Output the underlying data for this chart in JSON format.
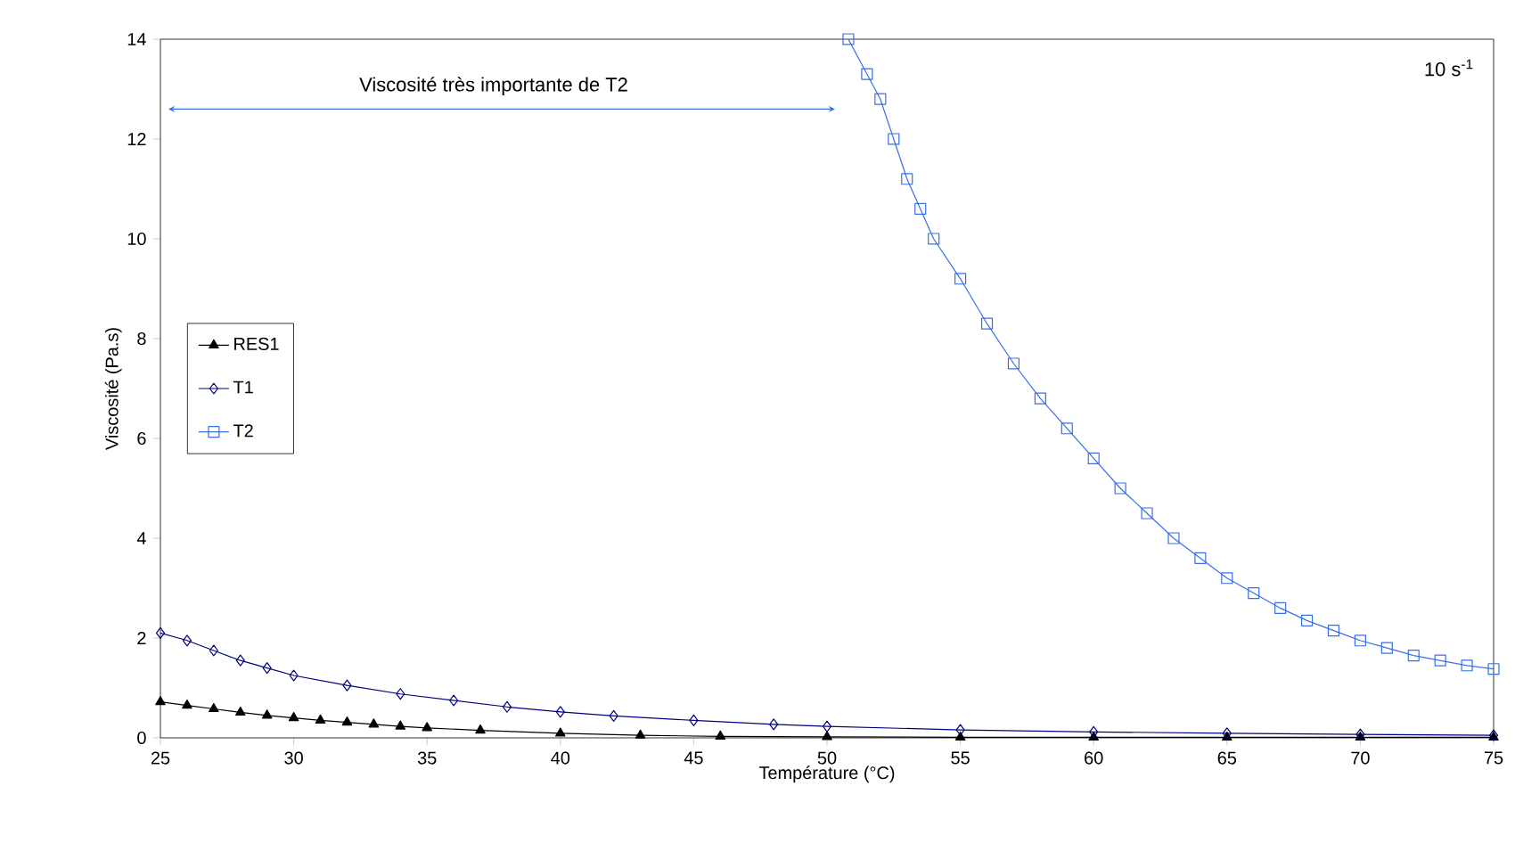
{
  "chart_data": {
    "type": "line",
    "xlabel": "Température  (°C)",
    "ylabel": "Viscosité (Pa.s)",
    "xlim": [
      25,
      75
    ],
    "ylim": [
      0,
      14
    ],
    "xticks": [
      25,
      30,
      35,
      40,
      45,
      50,
      55,
      60,
      65,
      70,
      75
    ],
    "yticks": [
      0,
      2,
      4,
      6,
      8,
      10,
      12,
      14
    ],
    "legend": "left",
    "grid": false,
    "annotations": [
      "Viscosité très importante de T2",
      "10 s$^{-1}$"
    ],
    "series": [
      {
        "name": "RES1",
        "color": "#000000",
        "marker": "triangle",
        "x": [
          25,
          26,
          27,
          28,
          29,
          30,
          31,
          32,
          33,
          34,
          35,
          37,
          40,
          43,
          46,
          50,
          55,
          60,
          65,
          70,
          75
        ],
        "values": [
          0.72,
          0.65,
          0.58,
          0.51,
          0.45,
          0.4,
          0.35,
          0.31,
          0.27,
          0.23,
          0.2,
          0.15,
          0.09,
          0.05,
          0.03,
          0.02,
          0.01,
          0.01,
          0.01,
          0.01,
          0.01
        ]
      },
      {
        "name": "T1",
        "color": "#000080",
        "marker": "diamond",
        "x": [
          25,
          26,
          27,
          28,
          29,
          30,
          32,
          34,
          36,
          38,
          40,
          42,
          45,
          48,
          50,
          55,
          60,
          65,
          70,
          75
        ],
        "values": [
          2.1,
          1.95,
          1.75,
          1.55,
          1.4,
          1.25,
          1.05,
          0.88,
          0.75,
          0.62,
          0.52,
          0.44,
          0.35,
          0.27,
          0.23,
          0.16,
          0.12,
          0.09,
          0.07,
          0.05
        ]
      },
      {
        "name": "T2",
        "color": "#3a6ee8",
        "marker": "square",
        "x": [
          50.8,
          51.5,
          52,
          52.5,
          53,
          53.5,
          54,
          55,
          56,
          57,
          58,
          59,
          60,
          61,
          62,
          63,
          64,
          65,
          66,
          67,
          68,
          69,
          70,
          71,
          72,
          73,
          74,
          75
        ],
        "values": [
          14,
          13.3,
          12.8,
          12.0,
          11.2,
          10.6,
          10.0,
          9.2,
          8.3,
          7.5,
          6.8,
          6.2,
          5.6,
          5.0,
          4.5,
          4.0,
          3.6,
          3.2,
          2.9,
          2.6,
          2.35,
          2.15,
          1.95,
          1.8,
          1.65,
          1.55,
          1.45,
          1.38
        ]
      }
    ]
  }
}
